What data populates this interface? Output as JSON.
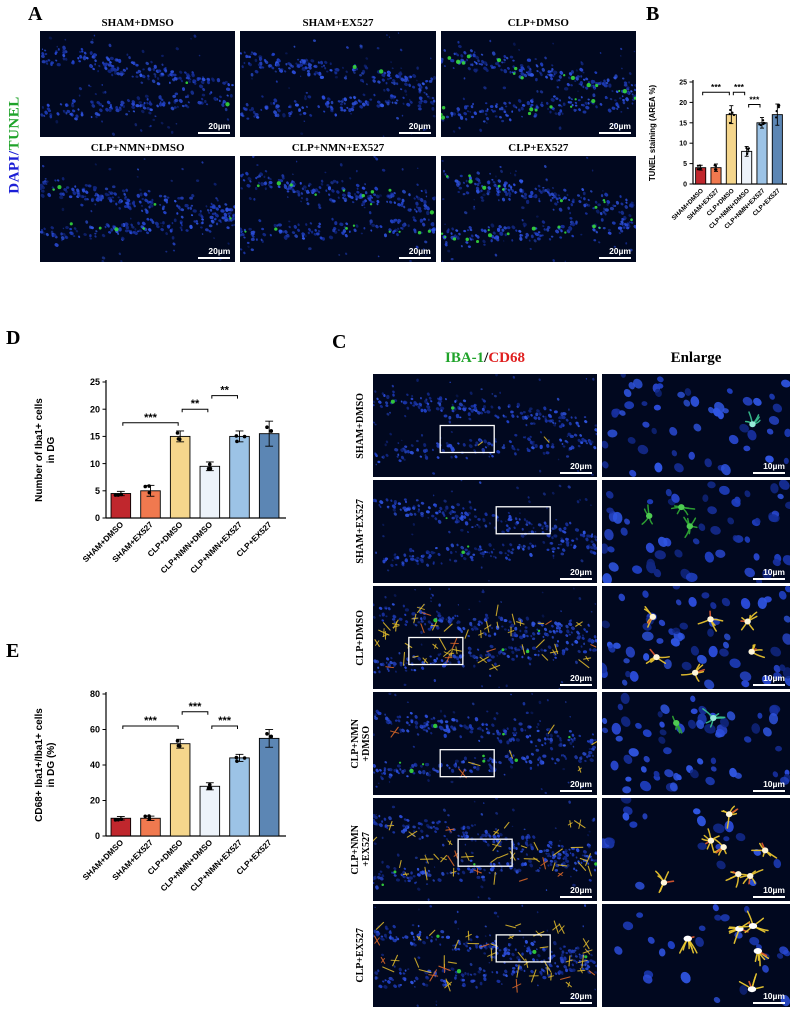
{
  "colors": {
    "dapi_blue": "#1c1fd6",
    "tunel_green": "#1fa32a",
    "iba_green": "#1fa32a",
    "cd68_red": "#e01f1f",
    "micro_background": "#01081f"
  },
  "panelA": {
    "letter": "A",
    "side_label": {
      "dapi": "DAPI",
      "sep": "/",
      "tunel": "TUNEL"
    },
    "images": [
      {
        "title": "SHAM+DMSO",
        "scale": "20µm"
      },
      {
        "title": "SHAM+EX527",
        "scale": "20µm"
      },
      {
        "title": "CLP+DMSO",
        "scale": "20µm"
      },
      {
        "title": "CLP+NMN+DMSO",
        "scale": "20µm"
      },
      {
        "title": "CLP+NMN+EX527",
        "scale": "20µm"
      },
      {
        "title": "CLP+EX527",
        "scale": "20µm"
      }
    ]
  },
  "panelB": {
    "letter": "B"
  },
  "panelC": {
    "letter": "C",
    "header": {
      "iba": "IBA-1",
      "sep": "/",
      "cd68": "CD68",
      "enlarge": "Enlarge"
    },
    "rows": [
      {
        "label": "SHAM+DMSO",
        "scale_left": "20µm",
        "scale_right": "10µm"
      },
      {
        "label": "SHAM+EX527",
        "scale_left": "20µm",
        "scale_right": "10µm"
      },
      {
        "label": "CLP+DMSO",
        "scale_left": "20µm",
        "scale_right": "10µm"
      },
      {
        "label": "CLP+NMN+DMSO",
        "label_lines": [
          "CLP+NMN",
          "+DMSO"
        ],
        "scale_left": "20µm",
        "scale_right": "10µm"
      },
      {
        "label": "CLP+NMN+EX527",
        "label_lines": [
          "CLP+NMN",
          "+EX527"
        ],
        "scale_left": "20µm",
        "scale_right": "10µm"
      },
      {
        "label": "CLP+EX527",
        "scale_left": "20µm",
        "scale_right": "10µm"
      }
    ]
  },
  "panelD": {
    "letter": "D"
  },
  "panelE": {
    "letter": "E"
  },
  "chart_data": [
    {
      "id": "B",
      "type": "bar",
      "ylabel": "TUNEL staining (AREA %)",
      "ylabel_lines": [
        "TUNEL staining (AREA %)"
      ],
      "categories": [
        "SHAM+DMSO",
        "SHAM+EX527",
        "CLP+DMSO",
        "CLP+NMN+DMSO",
        "CLP+NMN+EX527",
        "CLP+EX527"
      ],
      "values": [
        4,
        4,
        17,
        8,
        15,
        17
      ],
      "errors": [
        0.6,
        0.9,
        2.2,
        1.2,
        1.3,
        2.6
      ],
      "n_points": 6,
      "ylim": [
        0,
        25
      ],
      "yticks": [
        0,
        5,
        10,
        15,
        20,
        25
      ],
      "grid": false,
      "legend_position": "none",
      "bar_colors": [
        "#c0272d",
        "#f0794f",
        "#f5d68c",
        "#edf3fa",
        "#9cc3e6",
        "#5c86b4"
      ],
      "significance": [
        {
          "from": 0,
          "to": 2,
          "label": "***",
          "y": 22.5
        },
        {
          "from": 2,
          "to": 3,
          "label": "***",
          "y": 22.5
        },
        {
          "from": 3,
          "to": 4,
          "label": "***",
          "y": 19.5
        }
      ]
    },
    {
      "id": "D",
      "type": "bar",
      "ylabel": "Number of Iba1+ cells in DG",
      "ylabel_lines": [
        "Number of Iba1+ cells",
        "in DG"
      ],
      "categories": [
        "SHAM+DMSO",
        "SHAM+EX527",
        "CLP+DMSO",
        "CLP+NMN+DMSO",
        "CLP+NMN+EX527",
        "CLP+EX527"
      ],
      "values": [
        4.5,
        5,
        15,
        9.5,
        15,
        15.5
      ],
      "errors": [
        0.4,
        1,
        1,
        0.8,
        1,
        2.3
      ],
      "n_points": 3,
      "ylim": [
        0,
        25
      ],
      "yticks": [
        0,
        5,
        10,
        15,
        20,
        25
      ],
      "grid": false,
      "legend_position": "none",
      "bar_colors": [
        "#c0272d",
        "#f0794f",
        "#f5d68c",
        "#edf3fa",
        "#9cc3e6",
        "#5c86b4"
      ],
      "significance": [
        {
          "from": 0,
          "to": 2,
          "label": "***",
          "y": 17.5
        },
        {
          "from": 2,
          "to": 3,
          "label": "**",
          "y": 20
        },
        {
          "from": 3,
          "to": 4,
          "label": "**",
          "y": 22.5
        }
      ]
    },
    {
      "id": "E",
      "type": "bar",
      "ylabel": "CD68+ Iba1+/Iba1+ cells in DG (%)",
      "ylabel_lines": [
        "CD68+ Iba1+/Iba1+ cells",
        "in DG (%)"
      ],
      "categories": [
        "SHAM+DMSO",
        "SHAM+EX527",
        "CLP+DMSO",
        "CLP+NMN+DMSO",
        "CLP+NMN+EX527",
        "CLP+EX527"
      ],
      "values": [
        10,
        10,
        52,
        28,
        44,
        55
      ],
      "errors": [
        1,
        1.2,
        2.5,
        2,
        2,
        5
      ],
      "n_points": 3,
      "ylim": [
        0,
        80
      ],
      "yticks": [
        0,
        20,
        40,
        60,
        80
      ],
      "grid": false,
      "legend_position": "none",
      "bar_colors": [
        "#c0272d",
        "#f0794f",
        "#f5d68c",
        "#edf3fa",
        "#9cc3e6",
        "#5c86b4"
      ],
      "significance": [
        {
          "from": 0,
          "to": 2,
          "label": "***",
          "y": 62
        },
        {
          "from": 2,
          "to": 3,
          "label": "***",
          "y": 70
        },
        {
          "from": 3,
          "to": 4,
          "label": "***",
          "y": 62
        }
      ]
    }
  ]
}
